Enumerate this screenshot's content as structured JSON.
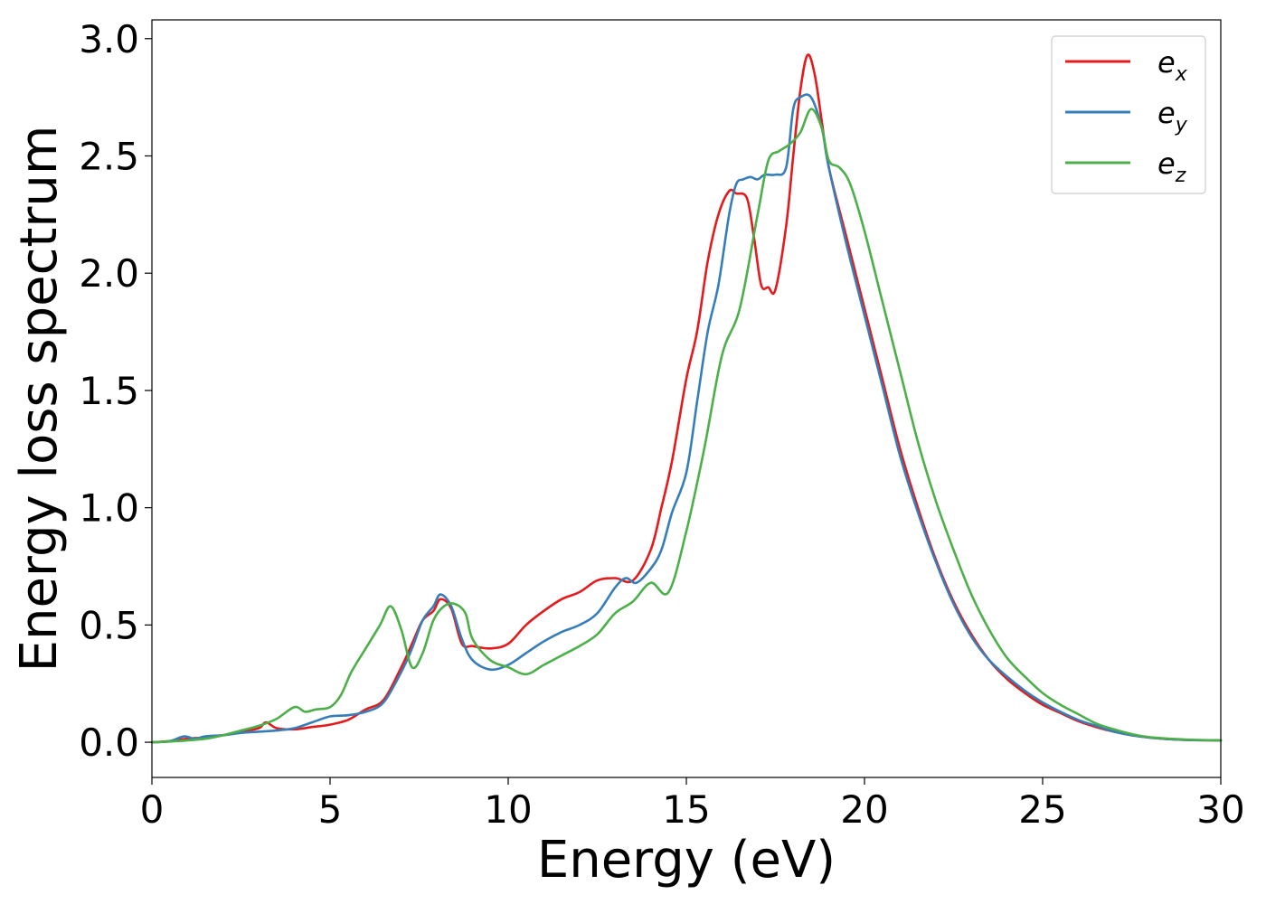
{
  "chart_data": {
    "type": "line",
    "title": "",
    "xlabel": "Energy (eV)",
    "ylabel": "Energy loss spectrum",
    "xlim": [
      0,
      30
    ],
    "ylim": [
      -0.15,
      3.08
    ],
    "xticks": [
      0,
      5,
      10,
      15,
      20,
      25,
      30
    ],
    "xtick_labels": [
      "0",
      "5",
      "10",
      "15",
      "20",
      "25",
      "30"
    ],
    "yticks": [
      0.0,
      0.5,
      1.0,
      1.5,
      2.0,
      2.5,
      3.0
    ],
    "ytick_labels": [
      "0.0",
      "0.5",
      "1.0",
      "1.5",
      "2.0",
      "2.5",
      "3.0"
    ],
    "grid": false,
    "legend_position": "top-right",
    "series": [
      {
        "name": "e_x",
        "label_main": "e",
        "label_sub": "x",
        "color": "#e41a1c",
        "x": [
          0,
          0.5,
          1,
          1.5,
          2,
          2.5,
          3,
          3.2,
          3.5,
          4,
          4.5,
          5,
          5.5,
          6,
          6.5,
          7,
          7.3,
          7.6,
          7.9,
          8.1,
          8.4,
          8.7,
          9,
          9.5,
          10,
          10.5,
          11,
          11.5,
          12,
          12.5,
          13,
          13.5,
          14,
          14.3,
          14.6,
          15,
          15.3,
          15.6,
          15.9,
          16.2,
          16.4,
          16.7,
          16.9,
          17.1,
          17.3,
          17.5,
          17.8,
          18.0,
          18.2,
          18.4,
          18.6,
          18.8,
          19,
          19.5,
          20,
          20.5,
          21,
          21.5,
          22,
          22.5,
          23,
          23.5,
          24,
          24.5,
          25,
          25.5,
          26,
          26.5,
          27,
          27.5,
          28,
          29,
          30
        ],
        "values": [
          0,
          0.005,
          0.015,
          0.02,
          0.03,
          0.045,
          0.06,
          0.085,
          0.06,
          0.055,
          0.065,
          0.075,
          0.095,
          0.14,
          0.18,
          0.32,
          0.42,
          0.52,
          0.56,
          0.61,
          0.57,
          0.42,
          0.41,
          0.4,
          0.42,
          0.5,
          0.56,
          0.61,
          0.64,
          0.69,
          0.7,
          0.69,
          0.82,
          1.0,
          1.2,
          1.55,
          1.75,
          2.05,
          2.25,
          2.35,
          2.34,
          2.32,
          2.15,
          1.95,
          1.94,
          1.93,
          2.2,
          2.5,
          2.78,
          2.93,
          2.85,
          2.65,
          2.45,
          2.15,
          1.85,
          1.55,
          1.25,
          1.0,
          0.78,
          0.6,
          0.46,
          0.35,
          0.27,
          0.21,
          0.16,
          0.125,
          0.09,
          0.065,
          0.045,
          0.03,
          0.02,
          0.01,
          0.008
        ]
      },
      {
        "name": "e_y",
        "label_main": "e",
        "label_sub": "y",
        "color": "#377eb8",
        "x": [
          0,
          0.5,
          0.9,
          1.2,
          1.5,
          2,
          2.5,
          3,
          3.5,
          4,
          4.5,
          5,
          5.5,
          6,
          6.5,
          7,
          7.3,
          7.6,
          7.9,
          8.1,
          8.4,
          8.7,
          9,
          9.5,
          10,
          10.5,
          11,
          11.5,
          12,
          12.5,
          13,
          13.3,
          13.6,
          14,
          14.3,
          14.6,
          15,
          15.3,
          15.6,
          15.9,
          16.2,
          16.4,
          16.6,
          16.8,
          17.0,
          17.2,
          17.5,
          17.8,
          18.0,
          18.2,
          18.5,
          18.8,
          19,
          19.5,
          20,
          20.5,
          21,
          21.5,
          22,
          22.5,
          23,
          23.5,
          24,
          24.5,
          25,
          25.5,
          26,
          26.5,
          27,
          27.5,
          28,
          29,
          30
        ],
        "values": [
          0,
          0.005,
          0.025,
          0.015,
          0.025,
          0.03,
          0.04,
          0.045,
          0.05,
          0.06,
          0.085,
          0.11,
          0.115,
          0.13,
          0.17,
          0.3,
          0.4,
          0.52,
          0.58,
          0.63,
          0.58,
          0.44,
          0.35,
          0.31,
          0.33,
          0.38,
          0.43,
          0.47,
          0.5,
          0.55,
          0.66,
          0.7,
          0.68,
          0.74,
          0.82,
          0.98,
          1.15,
          1.45,
          1.75,
          1.95,
          2.25,
          2.38,
          2.4,
          2.41,
          2.4,
          2.42,
          2.42,
          2.45,
          2.7,
          2.75,
          2.75,
          2.62,
          2.45,
          2.12,
          1.82,
          1.52,
          1.22,
          0.98,
          0.77,
          0.59,
          0.45,
          0.35,
          0.28,
          0.22,
          0.17,
          0.13,
          0.095,
          0.07,
          0.045,
          0.03,
          0.02,
          0.01,
          0.008
        ]
      },
      {
        "name": "e_z",
        "label_main": "e",
        "label_sub": "z",
        "color": "#4daf4a",
        "x": [
          0,
          0.5,
          1,
          1.5,
          2,
          2.5,
          3,
          3.5,
          4,
          4.3,
          4.6,
          5,
          5.3,
          5.6,
          6,
          6.4,
          6.7,
          7,
          7.3,
          7.6,
          7.9,
          8.2,
          8.5,
          8.8,
          9,
          9.5,
          10,
          10.5,
          11,
          11.5,
          12,
          12.5,
          13,
          13.5,
          14,
          14.5,
          15,
          15.5,
          16,
          16.5,
          17,
          17.3,
          17.6,
          17.9,
          18.2,
          18.5,
          18.8,
          19,
          19.3,
          19.6,
          20,
          20.5,
          21,
          21.5,
          22,
          22.5,
          23,
          23.5,
          24,
          24.5,
          25,
          25.5,
          26,
          26.5,
          27,
          27.5,
          28,
          29,
          30
        ],
        "values": [
          0,
          0.003,
          0.008,
          0.015,
          0.03,
          0.05,
          0.07,
          0.1,
          0.15,
          0.13,
          0.14,
          0.15,
          0.2,
          0.3,
          0.4,
          0.5,
          0.58,
          0.48,
          0.32,
          0.38,
          0.52,
          0.58,
          0.59,
          0.55,
          0.44,
          0.35,
          0.32,
          0.29,
          0.33,
          0.37,
          0.41,
          0.46,
          0.55,
          0.6,
          0.68,
          0.64,
          0.9,
          1.25,
          1.65,
          1.85,
          2.25,
          2.48,
          2.52,
          2.55,
          2.6,
          2.7,
          2.62,
          2.48,
          2.45,
          2.38,
          2.18,
          1.88,
          1.58,
          1.28,
          1.03,
          0.82,
          0.63,
          0.48,
          0.36,
          0.28,
          0.21,
          0.16,
          0.12,
          0.08,
          0.055,
          0.035,
          0.022,
          0.012,
          0.008
        ]
      }
    ]
  }
}
